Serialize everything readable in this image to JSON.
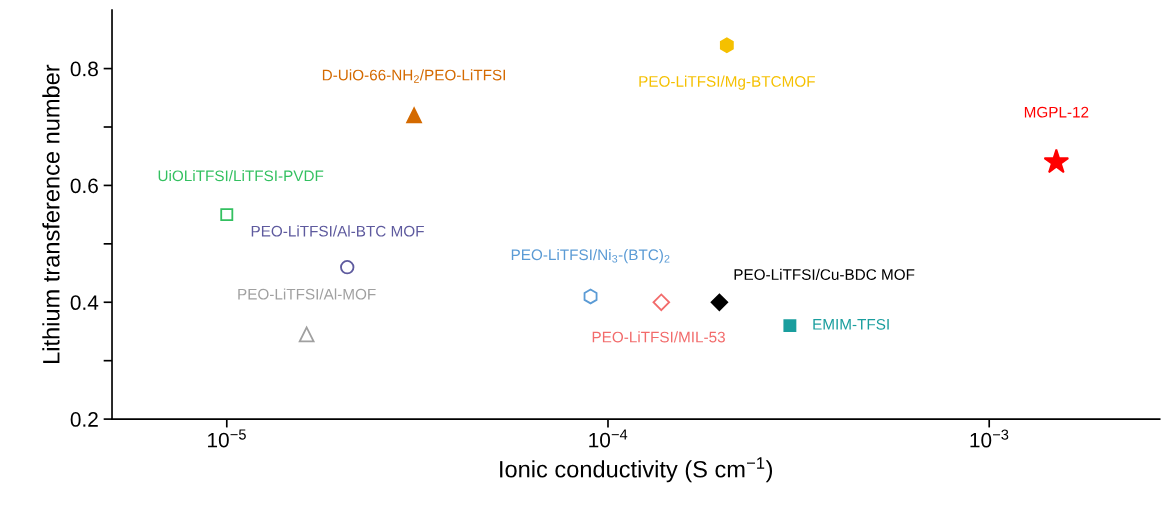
{
  "chart_data": {
    "type": "scatter",
    "xlabel": "Ionic conductivity (S cm$^{−1}$)",
    "ylabel": "Lithium transference number",
    "log": "x",
    "xlim": [
      5e-06,
      0.0028
    ],
    "xticks": [
      {
        "value": 1e-05,
        "label": "10$^{−5}$"
      },
      {
        "value": 0.0001,
        "label": "10$^{−4}$"
      },
      {
        "value": 0.001,
        "label": "10$^{−3}$"
      }
    ],
    "ylim": [
      0.2,
      0.9
    ],
    "yticks": [
      0.2,
      {
        "value": 0.3,
        "label": null
      },
      0.4,
      {
        "value": 0.5,
        "label": null
      },
      0.6,
      {
        "value": 0.7,
        "label": null
      },
      0.8
    ],
    "grid": false,
    "legend": false,
    "series": [
      {
        "name": "MGPL-12",
        "color": "#ff0000",
        "marker": "star",
        "x": [
          0.0015
        ],
        "values": [
          0.64
        ]
      },
      {
        "name": "PEO-LiTFSI/Mg-BTCMOF",
        "color": "#f5c000",
        "x": [
          0.000205
        ],
        "values": [
          0.84
        ]
      },
      {
        "name": "D-UiO-66-NH$_{2}$/PEO-LiTFSI",
        "color": "#d46a00",
        "marker": "triangle",
        "x": [
          3.1e-05
        ],
        "values": [
          0.72
        ]
      },
      {
        "name": "UiOLiTFSI/LiTFSI-PVDF",
        "color": "#33c060",
        "marker": "square",
        "x": [
          1e-05
        ],
        "values": [
          0.55
        ]
      },
      {
        "name": "PEO-LiTFSI/Al-BTC MOF",
        "color": "#5e5a9e",
        "marker": "circle",
        "x": [
          2.07e-05
        ],
        "values": [
          0.46
        ]
      },
      {
        "name": "PEO-LiTFSI/Al-MOF",
        "color": "#a0a0a0",
        "marker": "triangle",
        "x": [
          1.62e-05
        ],
        "values": [
          0.345
        ]
      },
      {
        "name": "PEO-LiTFSI/Ni$_{3}$-(BTC)$_{2}$",
        "color": "#5b9bd5",
        "x": [
          9e-05
        ],
        "values": [
          0.41
        ]
      },
      {
        "name": "PEO-LiTFSI/MIL-53",
        "color": "#f26b6b",
        "marker": "diamond",
        "x": [
          0.000138
        ],
        "values": [
          0.4
        ]
      },
      {
        "name": "PEO-LiTFSI/Cu-BDC MOF",
        "color": "#000000",
        "marker": "diamond",
        "x": [
          0.000196
        ],
        "values": [
          0.4
        ]
      },
      {
        "name": "EMIM-TFSI",
        "color": "#1a9e9e",
        "marker": "square",
        "x": [
          0.0003
        ],
        "values": [
          0.36
        ]
      }
    ]
  }
}
